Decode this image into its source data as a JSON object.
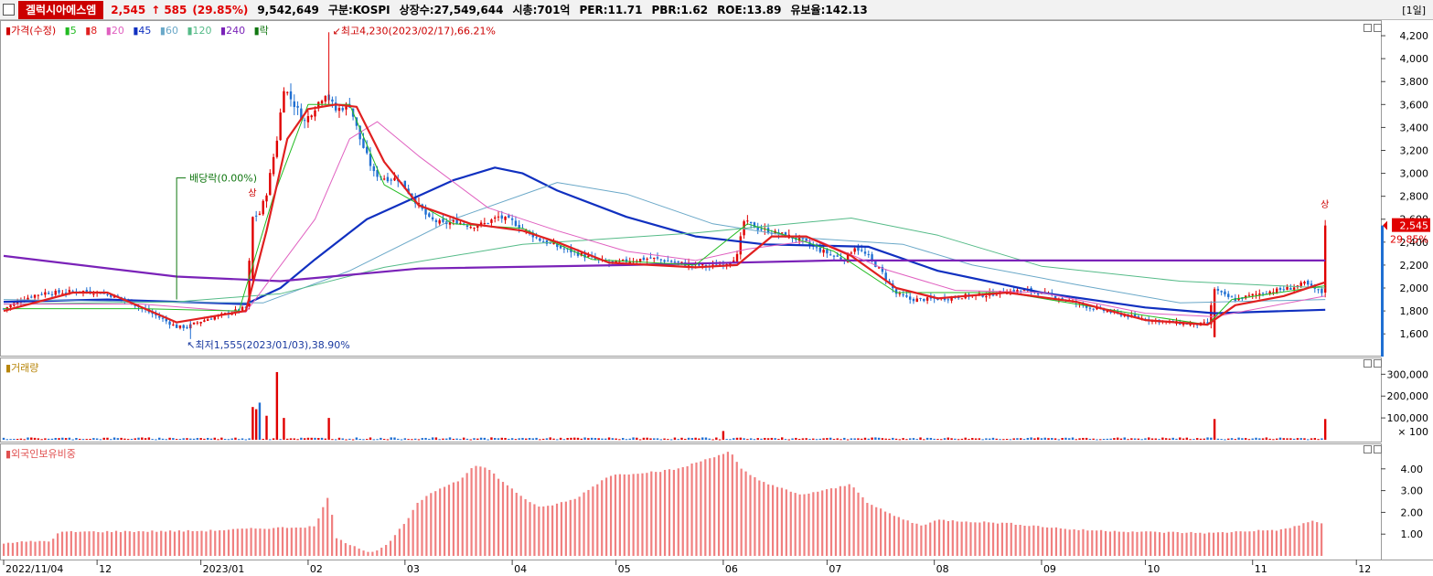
{
  "header": {
    "stock_name": "겔럭시아에스엠",
    "price": "2,545",
    "change_arrow": "↑",
    "change": "585",
    "change_pct": "(29.85%)",
    "volume": "9,542,649",
    "market": "구분:KOSPI",
    "shares": "상장수:27,549,644",
    "market_cap": "시총:701억",
    "per": "PER:11.71",
    "pbr": "PBR:1.62",
    "roe": "ROE:13.89",
    "float_ratio": "유보율:142.13",
    "period": "[1일]"
  },
  "colors": {
    "up": "#e00000",
    "down": "#1f6fd2",
    "ma5": "#22bb22",
    "ma8": "#e02020",
    "ma20": "#e060c0",
    "ma45": "#1030c0",
    "ma60": "#6aa8c8",
    "ma120": "#55bb88",
    "ma240": "#7a22b8",
    "volume_legend": "#b8860b",
    "foreign_bar": "#f08080"
  },
  "chart_data": [
    {
      "type": "candlestick",
      "title": "가격(수정)",
      "legend": [
        "가격(수정)",
        "5",
        "8",
        "20",
        "45",
        "60",
        "120",
        "240",
        "락"
      ],
      "y_ticks": [
        1600,
        1800,
        2000,
        2200,
        2400,
        2600,
        2800,
        3000,
        3200,
        3400,
        3600,
        3800,
        4000,
        4200
      ],
      "ylim": [
        1450,
        4320
      ],
      "x_range_days": [
        0,
        392
      ],
      "price_anchors": [
        [
          0,
          1820
        ],
        [
          4,
          1880
        ],
        [
          8,
          1930
        ],
        [
          12,
          1960
        ],
        [
          16,
          1960
        ],
        [
          22,
          1975
        ],
        [
          28,
          1960
        ],
        [
          32,
          1930
        ],
        [
          36,
          1885
        ],
        [
          40,
          1820
        ],
        [
          44,
          1760
        ],
        [
          47,
          1710
        ],
        [
          50,
          1660
        ],
        [
          53,
          1660
        ],
        [
          56,
          1700
        ],
        [
          60,
          1740
        ],
        [
          66,
          1790
        ],
        [
          70,
          1830
        ],
        [
          72,
          2620
        ],
        [
          74,
          2650
        ],
        [
          76,
          2830
        ],
        [
          79,
          3300
        ],
        [
          81,
          3750
        ],
        [
          84,
          3600
        ],
        [
          87,
          3450
        ],
        [
          91,
          3620
        ],
        [
          93,
          3700
        ],
        [
          96,
          3550
        ],
        [
          100,
          3600
        ],
        [
          103,
          3300
        ],
        [
          107,
          3000
        ],
        [
          110,
          2960
        ],
        [
          114,
          2950
        ],
        [
          118,
          2800
        ],
        [
          123,
          2600
        ],
        [
          127,
          2560
        ],
        [
          131,
          2580
        ],
        [
          135,
          2540
        ],
        [
          139,
          2560
        ],
        [
          143,
          2620
        ],
        [
          147,
          2580
        ],
        [
          151,
          2500
        ],
        [
          155,
          2420
        ],
        [
          161,
          2350
        ],
        [
          167,
          2290
        ],
        [
          173,
          2230
        ],
        [
          177,
          2220
        ],
        [
          181,
          2240
        ],
        [
          187,
          2260
        ],
        [
          193,
          2230
        ],
        [
          199,
          2200
        ],
        [
          205,
          2190
        ],
        [
          209,
          2220
        ],
        [
          212,
          2280
        ],
        [
          214,
          2580
        ],
        [
          218,
          2520
        ],
        [
          223,
          2480
        ],
        [
          227,
          2450
        ],
        [
          230,
          2420
        ],
        [
          236,
          2330
        ],
        [
          240,
          2280
        ],
        [
          243,
          2250
        ],
        [
          246,
          2360
        ],
        [
          250,
          2270
        ],
        [
          254,
          2130
        ],
        [
          258,
          1950
        ],
        [
          262,
          1900
        ],
        [
          266,
          1900
        ],
        [
          272,
          1910
        ],
        [
          278,
          1930
        ],
        [
          284,
          1940
        ],
        [
          290,
          1970
        ],
        [
          296,
          1980
        ],
        [
          302,
          1940
        ],
        [
          308,
          1890
        ],
        [
          314,
          1830
        ],
        [
          320,
          1790
        ],
        [
          326,
          1750
        ],
        [
          332,
          1720
        ],
        [
          338,
          1700
        ],
        [
          344,
          1680
        ],
        [
          348,
          1690
        ],
        [
          350,
          1990
        ],
        [
          353,
          1930
        ],
        [
          356,
          1900
        ],
        [
          360,
          1930
        ],
        [
          364,
          1960
        ],
        [
          368,
          1980
        ],
        [
          372,
          2000
        ],
        [
          376,
          2040
        ],
        [
          379,
          1990
        ],
        [
          381,
          1960
        ],
        [
          382,
          2545
        ]
      ],
      "ma_series": [
        {
          "name": "45",
          "points": [
            [
              0,
              1880
            ],
            [
              30,
              1900
            ],
            [
              70,
              1860
            ],
            [
              80,
              2000
            ],
            [
              90,
              2250
            ],
            [
              105,
              2600
            ],
            [
              130,
              2940
            ],
            [
              142,
              3050
            ],
            [
              150,
              3000
            ],
            [
              160,
              2850
            ],
            [
              180,
              2620
            ],
            [
              200,
              2450
            ],
            [
              220,
              2380
            ],
            [
              250,
              2360
            ],
            [
              270,
              2150
            ],
            [
              300,
              1960
            ],
            [
              330,
              1830
            ],
            [
              350,
              1780
            ],
            [
              382,
              1810
            ]
          ]
        },
        {
          "name": "60",
          "points": [
            [
              0,
              1900
            ],
            [
              40,
              1880
            ],
            [
              75,
              1870
            ],
            [
              100,
              2150
            ],
            [
              130,
              2600
            ],
            [
              160,
              2920
            ],
            [
              180,
              2820
            ],
            [
              205,
              2560
            ],
            [
              230,
              2440
            ],
            [
              260,
              2380
            ],
            [
              280,
              2200
            ],
            [
              310,
              2030
            ],
            [
              340,
              1870
            ],
            [
              382,
              1900
            ]
          ]
        },
        {
          "name": "120",
          "points": [
            [
              0,
              1860
            ],
            [
              50,
              1880
            ],
            [
              80,
              1950
            ],
            [
              110,
              2180
            ],
            [
              150,
              2380
            ],
            [
              200,
              2480
            ],
            [
              245,
              2610
            ],
            [
              270,
              2460
            ],
            [
              300,
              2190
            ],
            [
              340,
              2060
            ],
            [
              382,
              2000
            ]
          ]
        },
        {
          "name": "240",
          "points": [
            [
              0,
              2280
            ],
            [
              50,
              2100
            ],
            [
              80,
              2060
            ],
            [
              120,
              2170
            ],
            [
              180,
              2200
            ],
            [
              240,
              2240
            ],
            [
              382,
              2240
            ]
          ]
        },
        {
          "name": "20",
          "points": [
            [
              0,
              1860
            ],
            [
              40,
              1860
            ],
            [
              70,
              1790
            ],
            [
              90,
              2600
            ],
            [
              100,
              3300
            ],
            [
              108,
              3450
            ],
            [
              120,
              3150
            ],
            [
              140,
              2700
            ],
            [
              160,
              2500
            ],
            [
              180,
              2320
            ],
            [
              200,
              2240
            ],
            [
              215,
              2340
            ],
            [
              235,
              2420
            ],
            [
              255,
              2160
            ],
            [
              275,
              1980
            ],
            [
              300,
              1960
            ],
            [
              330,
              1780
            ],
            [
              350,
              1750
            ],
            [
              382,
              1930
            ]
          ]
        },
        {
          "name": "5",
          "points": [
            [
              0,
              1820
            ],
            [
              40,
              1820
            ],
            [
              68,
              1800
            ],
            [
              78,
              2800
            ],
            [
              88,
              3600
            ],
            [
              100,
              3600
            ],
            [
              110,
              2900
            ],
            [
              130,
              2560
            ],
            [
              150,
              2520
            ],
            [
              170,
              2250
            ],
            [
              200,
              2200
            ],
            [
              215,
              2560
            ],
            [
              225,
              2470
            ],
            [
              240,
              2320
            ],
            [
              258,
              1960
            ],
            [
              290,
              1960
            ],
            [
              330,
              1760
            ],
            [
              348,
              1680
            ],
            [
              355,
              1900
            ],
            [
              382,
              2020
            ]
          ]
        },
        {
          "name": "8",
          "points": [
            [
              0,
              1800
            ],
            [
              20,
              1960
            ],
            [
              30,
              1960
            ],
            [
              50,
              1700
            ],
            [
              70,
              1800
            ],
            [
              76,
              2500
            ],
            [
              82,
              3300
            ],
            [
              88,
              3560
            ],
            [
              96,
              3600
            ],
            [
              102,
              3580
            ],
            [
              110,
              3100
            ],
            [
              120,
              2720
            ],
            [
              135,
              2560
            ],
            [
              150,
              2500
            ],
            [
              160,
              2400
            ],
            [
              175,
              2220
            ],
            [
              200,
              2180
            ],
            [
              212,
              2200
            ],
            [
              222,
              2450
            ],
            [
              232,
              2450
            ],
            [
              245,
              2280
            ],
            [
              258,
              2000
            ],
            [
              270,
              1910
            ],
            [
              290,
              1960
            ],
            [
              310,
              1880
            ],
            [
              330,
              1720
            ],
            [
              348,
              1680
            ],
            [
              356,
              1850
            ],
            [
              370,
              1930
            ],
            [
              382,
              2050
            ]
          ]
        }
      ],
      "annotations": [
        {
          "text": "최고4,230(2023/02/17),66.21%",
          "day": 94,
          "price": 4230
        },
        {
          "text": "최저1,555(2023/01/03),38.90%",
          "day": 54,
          "price": 1555
        },
        {
          "text": "배당락(0.00%)",
          "day": 50
        },
        {
          "text": "상",
          "day": 72
        },
        {
          "text": "상",
          "day": 382
        }
      ],
      "last_price_label": "2,545",
      "last_pct_label": "29.85%"
    },
    {
      "type": "bar",
      "title": "거래량",
      "y_ticks": [
        "300,000",
        "200,000",
        "100,000"
      ],
      "y_unit": "× 100",
      "ylim": [
        0,
        360000
      ],
      "spikes": [
        [
          72,
          150000,
          "up"
        ],
        [
          73,
          140000,
          "up"
        ],
        [
          74,
          170000,
          "down"
        ],
        [
          76,
          110000,
          "up"
        ],
        [
          79,
          310000,
          "up"
        ],
        [
          81,
          100000,
          "up"
        ],
        [
          94,
          100000,
          "up"
        ],
        [
          208,
          40000,
          "up"
        ],
        [
          350,
          95000,
          "up"
        ],
        [
          382,
          95000,
          "up"
        ]
      ]
    },
    {
      "type": "bar",
      "title": "외국인보유비중",
      "y_ticks": [
        "4.00",
        "3.00",
        "2.00",
        "1.00"
      ],
      "ylim": [
        0,
        5
      ],
      "anchors": [
        [
          0,
          0.6
        ],
        [
          14,
          0.7
        ],
        [
          16,
          1.1
        ],
        [
          58,
          1.15
        ],
        [
          72,
          1.25
        ],
        [
          90,
          1.35
        ],
        [
          94,
          2.85
        ],
        [
          96,
          0.8
        ],
        [
          106,
          0.15
        ],
        [
          110,
          0.4
        ],
        [
          116,
          1.5
        ],
        [
          120,
          2.5
        ],
        [
          126,
          3.1
        ],
        [
          132,
          3.5
        ],
        [
          136,
          4.2
        ],
        [
          140,
          4.0
        ],
        [
          145,
          3.3
        ],
        [
          150,
          2.7
        ],
        [
          155,
          2.2
        ],
        [
          165,
          2.6
        ],
        [
          175,
          3.7
        ],
        [
          190,
          3.9
        ],
        [
          195,
          4.0
        ],
        [
          205,
          4.55
        ],
        [
          210,
          4.8
        ],
        [
          213,
          4.0
        ],
        [
          218,
          3.5
        ],
        [
          230,
          2.8
        ],
        [
          240,
          3.1
        ],
        [
          245,
          3.3
        ],
        [
          250,
          2.4
        ],
        [
          258,
          1.8
        ],
        [
          265,
          1.4
        ],
        [
          270,
          1.65
        ],
        [
          290,
          1.5
        ],
        [
          310,
          1.2
        ],
        [
          330,
          1.1
        ],
        [
          350,
          1.05
        ],
        [
          360,
          1.15
        ],
        [
          370,
          1.2
        ],
        [
          378,
          1.6
        ],
        [
          382,
          1.45
        ]
      ]
    }
  ],
  "x_axis": {
    "labels": [
      {
        "day": 0,
        "text": "2022/11/04"
      },
      {
        "day": 27,
        "text": "12"
      },
      {
        "day": 57,
        "text": "2023/01"
      },
      {
        "day": 88,
        "text": "02"
      },
      {
        "day": 116,
        "text": "03"
      },
      {
        "day": 147,
        "text": "04"
      },
      {
        "day": 177,
        "text": "05"
      },
      {
        "day": 208,
        "text": "06"
      },
      {
        "day": 238,
        "text": "07"
      },
      {
        "day": 269,
        "text": "08"
      },
      {
        "day": 300,
        "text": "09"
      },
      {
        "day": 330,
        "text": "10"
      },
      {
        "day": 361,
        "text": "11"
      },
      {
        "day": 391,
        "text": "12"
      }
    ]
  },
  "legends": {
    "price": [
      "가격(수정)",
      "5",
      "8",
      "20",
      "45",
      "60",
      "120",
      "240",
      "락"
    ],
    "volume": "거래량",
    "foreign": "외국인보유비중"
  }
}
